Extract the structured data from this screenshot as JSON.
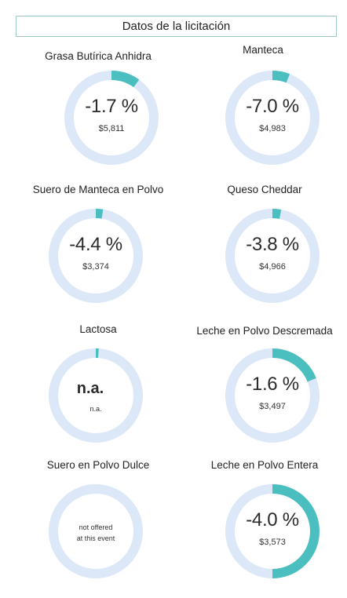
{
  "header": {
    "title": "Datos de la licitación"
  },
  "colors": {
    "track": "#dce8f7",
    "fill": "#4bbfbf"
  },
  "cards": [
    {
      "title": "Grasa Butírica Anhidra",
      "change": "-1.7 %",
      "price": "$5,811",
      "fill_fraction": 0.1
    },
    {
      "title": "Manteca",
      "change": "-7.0 %",
      "price": "$4,983",
      "fill_fraction": 0.06
    },
    {
      "title": "Suero de Manteca en Polvo",
      "change": "-4.4 %",
      "price": "$3,374",
      "fill_fraction": 0.025
    },
    {
      "title": "Queso Cheddar",
      "change": "-3.8 %",
      "price": "$4,966",
      "fill_fraction": 0.03
    },
    {
      "title": "Lactosa",
      "change": "n.a.",
      "price": "n.a.",
      "fill_fraction": 0.01
    },
    {
      "title": "Leche en Polvo Descremada",
      "change": "-1.6 %",
      "price": "$3,497",
      "fill_fraction": 0.19
    },
    {
      "title": "Suero en Polvo Dulce",
      "note_line1": "not offered",
      "note_line2": "at this event",
      "fill_fraction": 0
    },
    {
      "title": "Leche en Polvo Entera",
      "change": "-4.0 %",
      "price": "$3,573",
      "fill_fraction": 0.5
    }
  ]
}
